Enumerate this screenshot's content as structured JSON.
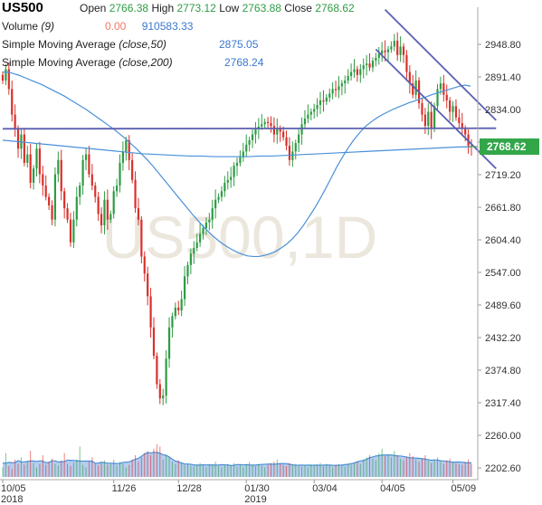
{
  "header": {
    "symbol": "US500",
    "open_label": "Open",
    "open_value": "2766.38",
    "high_label": "High",
    "high_value": "2773.12",
    "low_label": "Low",
    "low_value": "2763.88",
    "close_label": "Close",
    "close_value": "2768.62",
    "volume_label": "Volume",
    "volume_param": "(9)",
    "volume_change": "0.00",
    "volume_value": "910583.33",
    "sma50_label": "Simple Moving Average",
    "sma50_param": "(close,50)",
    "sma50_value": "2875.05",
    "sma200_label": "Simple Moving Average",
    "sma200_param": "(close,200)",
    "sma200_value": "2768.24"
  },
  "colors": {
    "up": "#2e9c44",
    "down": "#d9302b",
    "sma": "#4a90d9",
    "trendline": "#5a5fb0",
    "volume_fill": "#a9c4ec",
    "price_tag": "#33a64a"
  },
  "chart_data": {
    "type": "candlestick",
    "symbol": "US500",
    "timeframe": "1D",
    "watermark": "US500,1D",
    "ylim": [
      2202.6,
      2990
    ],
    "y_ticks": [
      "2948.80",
      "2891.40",
      "2834.00",
      "2776.60",
      "2719.20",
      "2661.80",
      "2604.40",
      "2547.00",
      "2489.60",
      "2432.20",
      "2374.80",
      "2317.40",
      "2260.00",
      "2202.60"
    ],
    "x_ticks": [
      {
        "label": "10/05",
        "sublabel": "2018",
        "x": 0
      },
      {
        "label": "11/26",
        "sublabel": "",
        "x": 36
      },
      {
        "label": "12/28",
        "sublabel": "",
        "x": 57
      },
      {
        "label": "01/30",
        "sublabel": "2019",
        "x": 79
      },
      {
        "label": "03/04",
        "sublabel": "",
        "x": 101
      },
      {
        "label": "04/05",
        "sublabel": "",
        "x": 123
      },
      {
        "label": "05/09",
        "sublabel": "",
        "x": 146
      }
    ],
    "last_price": "2768.62",
    "closes": [
      2885,
      2905,
      2870,
      2825,
      2800,
      2765,
      2790,
      2740,
      2755,
      2705,
      2730,
      2765,
      2720,
      2700,
      2680,
      2665,
      2640,
      2720,
      2745,
      2690,
      2660,
      2640,
      2600,
      2640,
      2680,
      2700,
      2745,
      2755,
      2720,
      2700,
      2680,
      2650,
      2630,
      2675,
      2640,
      2650,
      2690,
      2700,
      2740,
      2760,
      2780,
      2745,
      2710,
      2660,
      2640,
      2575,
      2545,
      2505,
      2450,
      2400,
      2350,
      2325,
      2330,
      2395,
      2450,
      2470,
      2485,
      2480,
      2500,
      2540,
      2560,
      2580,
      2590,
      2600,
      2615,
      2625,
      2635,
      2640,
      2660,
      2675,
      2680,
      2690,
      2705,
      2710,
      2715,
      2735,
      2740,
      2750,
      2760,
      2772,
      2780,
      2790,
      2800,
      2804,
      2808,
      2812,
      2810,
      2805,
      2790,
      2800,
      2795,
      2785,
      2770,
      2745,
      2760,
      2775,
      2790,
      2808,
      2818,
      2825,
      2830,
      2835,
      2842,
      2850,
      2848,
      2855,
      2862,
      2870,
      2868,
      2875,
      2880,
      2885,
      2893,
      2900,
      2905,
      2895,
      2905,
      2912,
      2915,
      2908,
      2920,
      2925,
      2932,
      2938,
      2935,
      2940,
      2945,
      2955,
      2930,
      2945,
      2930,
      2900,
      2880,
      2860,
      2885,
      2845,
      2825,
      2805,
      2830,
      2800,
      2840,
      2870,
      2880,
      2860,
      2850,
      2830,
      2840,
      2820,
      2810,
      2800,
      2790,
      2770,
      2768.62
    ],
    "sma50": [
      2900,
      2900,
      2897,
      2894,
      2890,
      2886,
      2882,
      2878,
      2873,
      2868,
      2863,
      2858,
      2852,
      2846,
      2840,
      2834,
      2827,
      2820,
      2813,
      2806,
      2799,
      2791,
      2783,
      2774,
      2765,
      2755,
      2745,
      2734,
      2722,
      2710,
      2698,
      2686,
      2674,
      2662,
      2650,
      2639,
      2628,
      2618,
      2609,
      2601,
      2594,
      2588,
      2583,
      2579,
      2576,
      2575,
      2575,
      2577,
      2580,
      2584,
      2590,
      2597,
      2606,
      2617,
      2630,
      2645,
      2660,
      2677,
      2695,
      2714,
      2733,
      2750,
      2766,
      2780,
      2792,
      2803,
      2811,
      2818,
      2824,
      2829,
      2834,
      2838,
      2842,
      2846,
      2849,
      2853,
      2856,
      2860,
      2863,
      2866,
      2869,
      2872,
      2875,
      2877,
      2875.05
    ],
    "sma200": [
      2780,
      2778,
      2776,
      2774,
      2772,
      2770,
      2768,
      2766,
      2764,
      2762,
      2760,
      2758,
      2756,
      2755,
      2754,
      2753,
      2752,
      2752,
      2751,
      2751,
      2751,
      2751,
      2752,
      2752,
      2753,
      2754,
      2755,
      2756,
      2757,
      2758,
      2759,
      2760,
      2761,
      2762,
      2763,
      2764,
      2765,
      2766,
      2767,
      2768,
      2768.24
    ],
    "volume": [
      0.22,
      0.55,
      0.25,
      0.18,
      0.4,
      0.3,
      0.45,
      0.28,
      0.35,
      0.6,
      0.32,
      0.22,
      0.3,
      0.5,
      0.28,
      0.35,
      0.42,
      0.3,
      0.26,
      0.38,
      0.55,
      0.3,
      0.25,
      0.33,
      0.4,
      0.7,
      0.28,
      0.22,
      0.35,
      0.45,
      0.3,
      0.26,
      0.32,
      0.38,
      0.28,
      0.3,
      0.4,
      0.26,
      0.35,
      0.3,
      0.22,
      0.28,
      0.4,
      0.5,
      0.35,
      0.45,
      0.55,
      0.6,
      0.5,
      0.65,
      0.75,
      0.7,
      0.4,
      0.5,
      0.45,
      0.35,
      0.3,
      0.38,
      0.32,
      0.28,
      0.3,
      0.26,
      0.24,
      0.28,
      0.32,
      0.26,
      0.22,
      0.3,
      0.28,
      0.35,
      0.25,
      0.22,
      0.28,
      0.3,
      0.26,
      0.32,
      0.24,
      0.28,
      0.22,
      0.3,
      0.35,
      0.28,
      0.25,
      0.3,
      0.26,
      0.22,
      0.28,
      0.3,
      0.35,
      0.4,
      0.3,
      0.28,
      0.25,
      0.32,
      0.28,
      0.3,
      0.26,
      0.24,
      0.28,
      0.22,
      0.3,
      0.26,
      0.28,
      0.32,
      0.24,
      0.3,
      0.26,
      0.22,
      0.28,
      0.3,
      0.26,
      0.24,
      0.3,
      0.28,
      0.32,
      0.35,
      0.3,
      0.4,
      0.45,
      0.5,
      0.42,
      0.38,
      0.55,
      0.65,
      0.48,
      0.52,
      0.45,
      0.6,
      0.5,
      0.42,
      0.38,
      0.45,
      0.55,
      0.48,
      0.4,
      0.35,
      0.42,
      0.5,
      0.38,
      0.32,
      0.4,
      0.45,
      0.35,
      0.3,
      0.38,
      0.42,
      0.35,
      0.32,
      0.3,
      0.28,
      0.35,
      0.4,
      0.3
    ],
    "trendlines": [
      {
        "name": "horizontal-support",
        "from": [
          0,
          2800
        ],
        "to": [
          160,
          2801
        ]
      },
      {
        "name": "channel-upper",
        "from": [
          124,
          3010
        ],
        "to": [
          160,
          2815
        ]
      },
      {
        "name": "channel-lower",
        "from": [
          121,
          2940
        ],
        "to": [
          160,
          2730
        ]
      }
    ]
  }
}
